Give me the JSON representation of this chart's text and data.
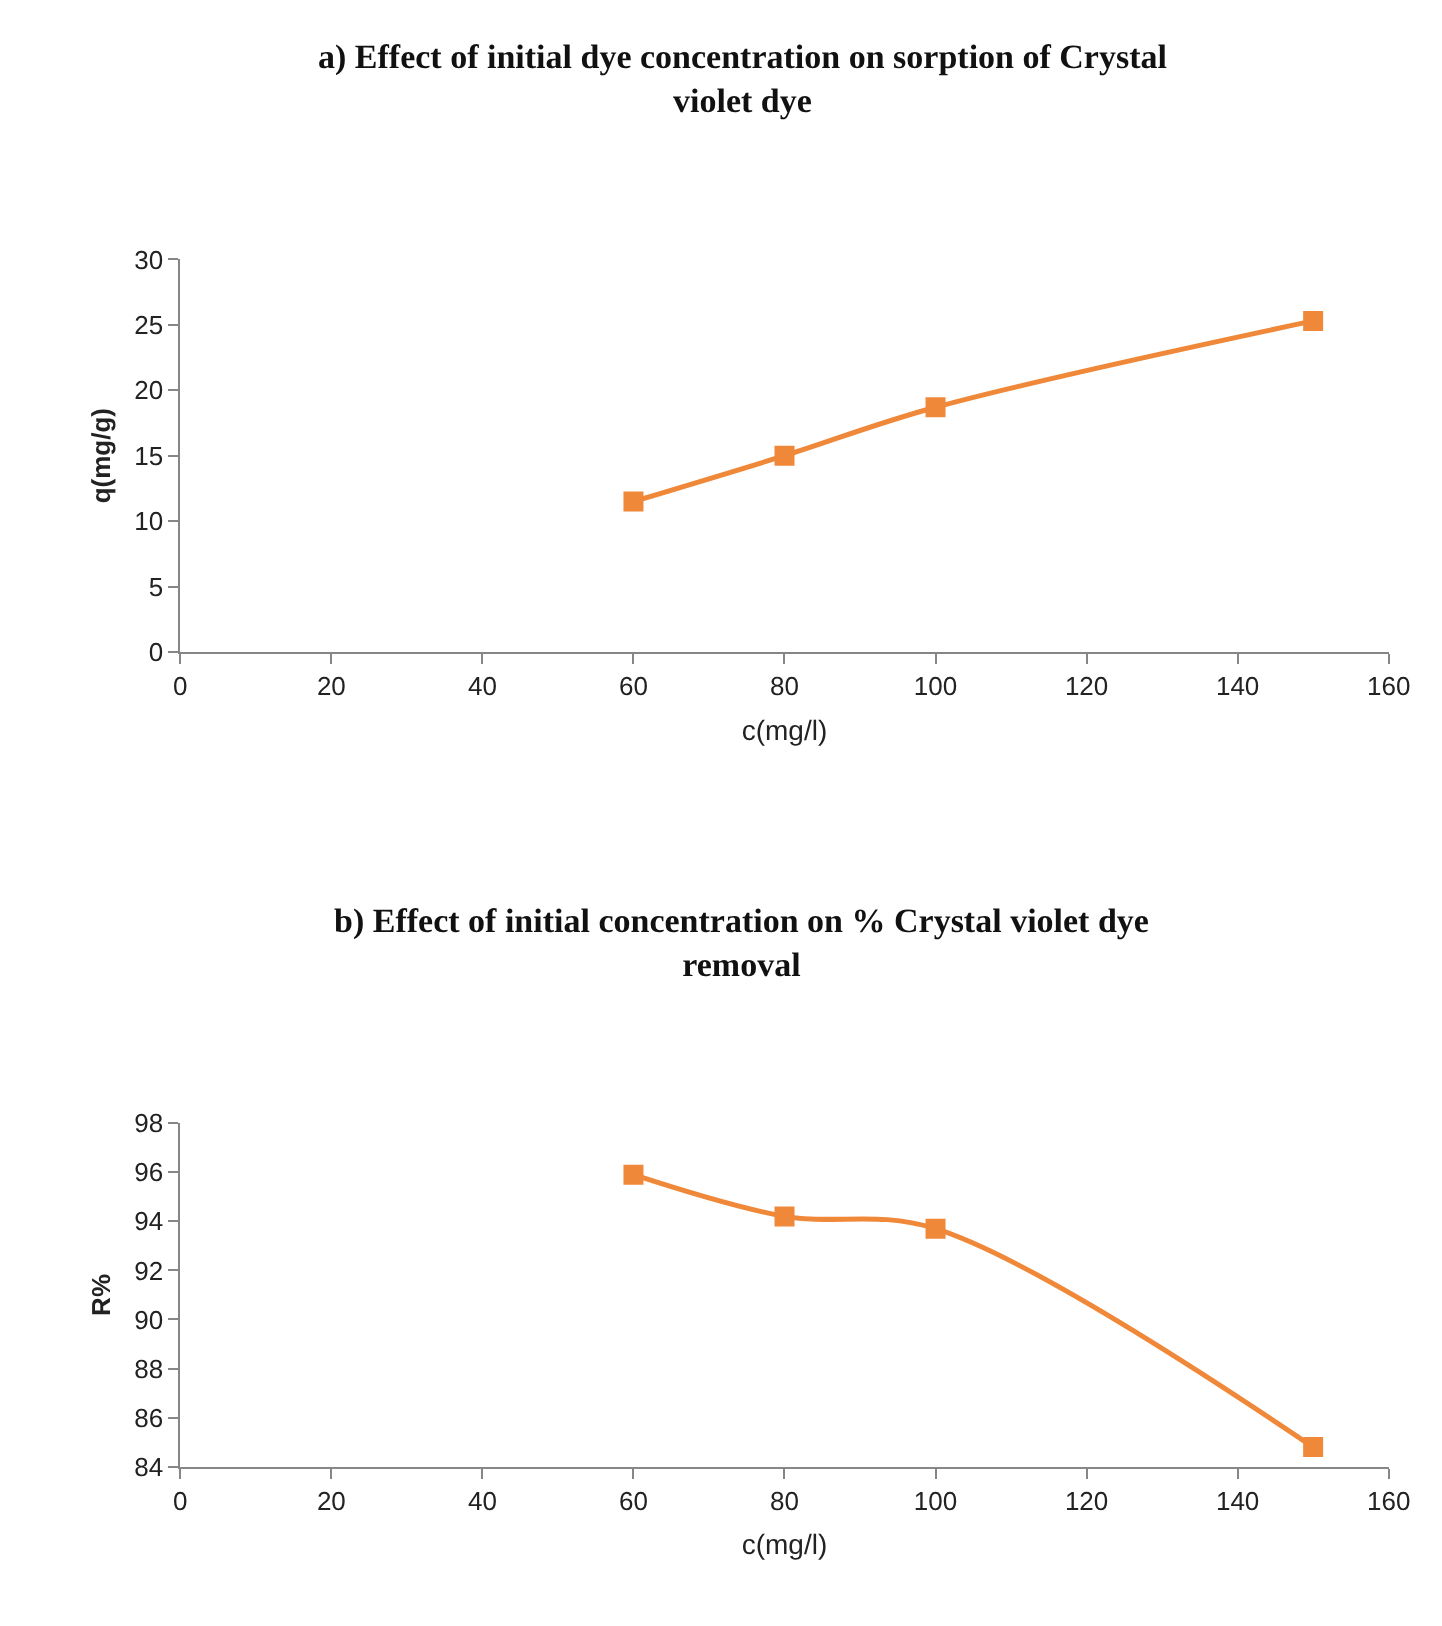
{
  "chart_data": [
    {
      "type": "line",
      "title": "a) Effect of initial dye concentration on sorption of Crystal violet dye",
      "xlabel": "c(mg/l)",
      "ylabel": "q(mg/g)",
      "x": [
        60,
        80,
        100,
        150
      ],
      "values": [
        11.5,
        15,
        18.7,
        25.3
      ],
      "color": "#f0883a",
      "marker": "square",
      "xlim": [
        0,
        160
      ],
      "xticks": [
        0,
        20,
        40,
        60,
        80,
        100,
        120,
        140,
        160
      ],
      "ylim": [
        0,
        30
      ],
      "yticks": [
        0,
        5,
        10,
        15,
        20,
        25,
        30
      ]
    },
    {
      "type": "line",
      "title": "b) Effect of initial concentration on % Crystal violet dye removal",
      "xlabel": "c(mg/l)",
      "ylabel": "R%",
      "x": [
        60,
        80,
        100,
        150
      ],
      "values": [
        95.9,
        94.2,
        93.7,
        84.8
      ],
      "color": "#f0883a",
      "marker": "square",
      "xlim": [
        0,
        160
      ],
      "xticks": [
        0,
        20,
        40,
        60,
        80,
        100,
        120,
        140,
        160
      ],
      "ylim": [
        84,
        98
      ],
      "yticks": [
        84,
        86,
        88,
        90,
        92,
        94,
        96,
        98
      ]
    }
  ]
}
